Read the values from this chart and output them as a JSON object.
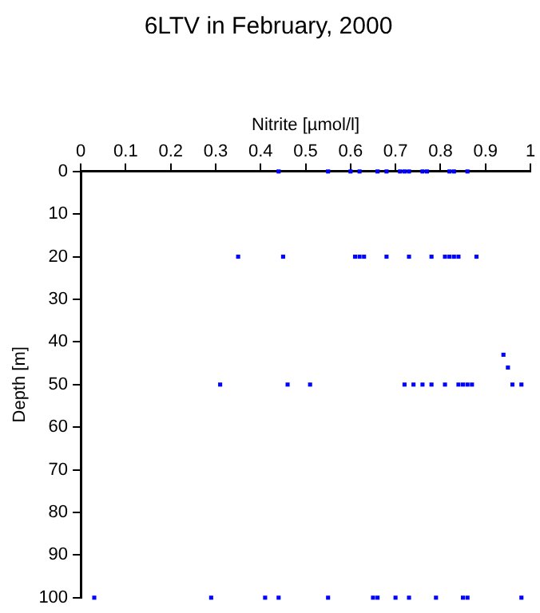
{
  "chart_data": {
    "type": "scatter",
    "title": "6LTV in February, 2000",
    "xlabel": "Nitrite [µmol/l]",
    "ylabel": "Depth [m]",
    "x": [
      0.44,
      0.55,
      0.6,
      0.62,
      0.66,
      0.68,
      0.71,
      0.72,
      0.73,
      0.76,
      0.77,
      0.82,
      0.83,
      0.86,
      0.35,
      0.45,
      0.61,
      0.62,
      0.63,
      0.68,
      0.73,
      0.78,
      0.81,
      0.82,
      0.83,
      0.84,
      0.88,
      0.94,
      0.95,
      0.31,
      0.46,
      0.51,
      0.72,
      0.74,
      0.76,
      0.78,
      0.81,
      0.84,
      0.85,
      0.86,
      0.87,
      0.96,
      0.98,
      0.03,
      0.29,
      0.41,
      0.44,
      0.55,
      0.65,
      0.66,
      0.7,
      0.73,
      0.79,
      0.85,
      0.86,
      0.98
    ],
    "values": [
      0,
      0,
      0,
      0,
      0,
      0,
      0,
      0,
      0,
      0,
      0,
      0,
      0,
      0,
      20,
      20,
      20,
      20,
      20,
      20,
      20,
      20,
      20,
      20,
      20,
      20,
      20,
      43,
      46,
      50,
      50,
      50,
      50,
      50,
      50,
      50,
      50,
      50,
      50,
      50,
      50,
      50,
      50,
      100,
      100,
      100,
      100,
      100,
      100,
      100,
      100,
      100,
      100,
      100,
      100,
      100
    ],
    "color": "#0000ff",
    "marker": "square",
    "grid": false,
    "legend": false,
    "xlim": [
      0,
      1
    ],
    "xticks": [
      0,
      0.1,
      0.2,
      0.3,
      0.4,
      0.5,
      0.6,
      0.7,
      0.8,
      0.9,
      1
    ],
    "ylim": [
      100,
      0
    ],
    "yticks": [
      0,
      10,
      20,
      30,
      40,
      50,
      60,
      70,
      80,
      90,
      100
    ]
  }
}
